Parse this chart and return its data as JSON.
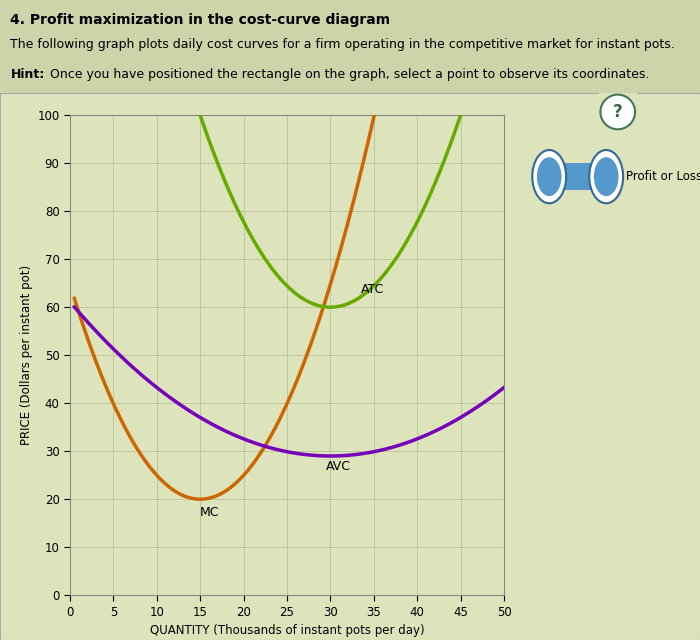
{
  "title": "4. Profit maximization in the cost-curve diagram",
  "subtitle1": "The following graph plots daily cost curves for a firm operating in the competitive market for instant pots.",
  "hint_label": "Hint:",
  "hint_rest": " Once you have positioned the rectangle on the graph, select a point to observe its coordinates.",
  "xlabel": "QUANTITY (Thousands of instant pots per day)",
  "ylabel": "PRICE (Dollars per instant pot)",
  "xlim": [
    0,
    50
  ],
  "ylim": [
    0,
    100
  ],
  "xticks": [
    0,
    5,
    10,
    15,
    20,
    25,
    30,
    35,
    40,
    45,
    50
  ],
  "yticks": [
    0,
    10,
    20,
    30,
    40,
    50,
    60,
    70,
    80,
    90,
    100
  ],
  "outer_bg": "#cdd4aa",
  "plot_bg_color": "#dde4bb",
  "grid_color": "#bcc8a0",
  "mc_color": "#cc6600",
  "atc_color": "#66aa00",
  "avc_color": "#7700bb",
  "legend_text": "Profit or Loss",
  "legend_fill": "#5599cc",
  "legend_edge": "#336699",
  "qmark_edge": "#447755",
  "qmark_text": "#336644"
}
